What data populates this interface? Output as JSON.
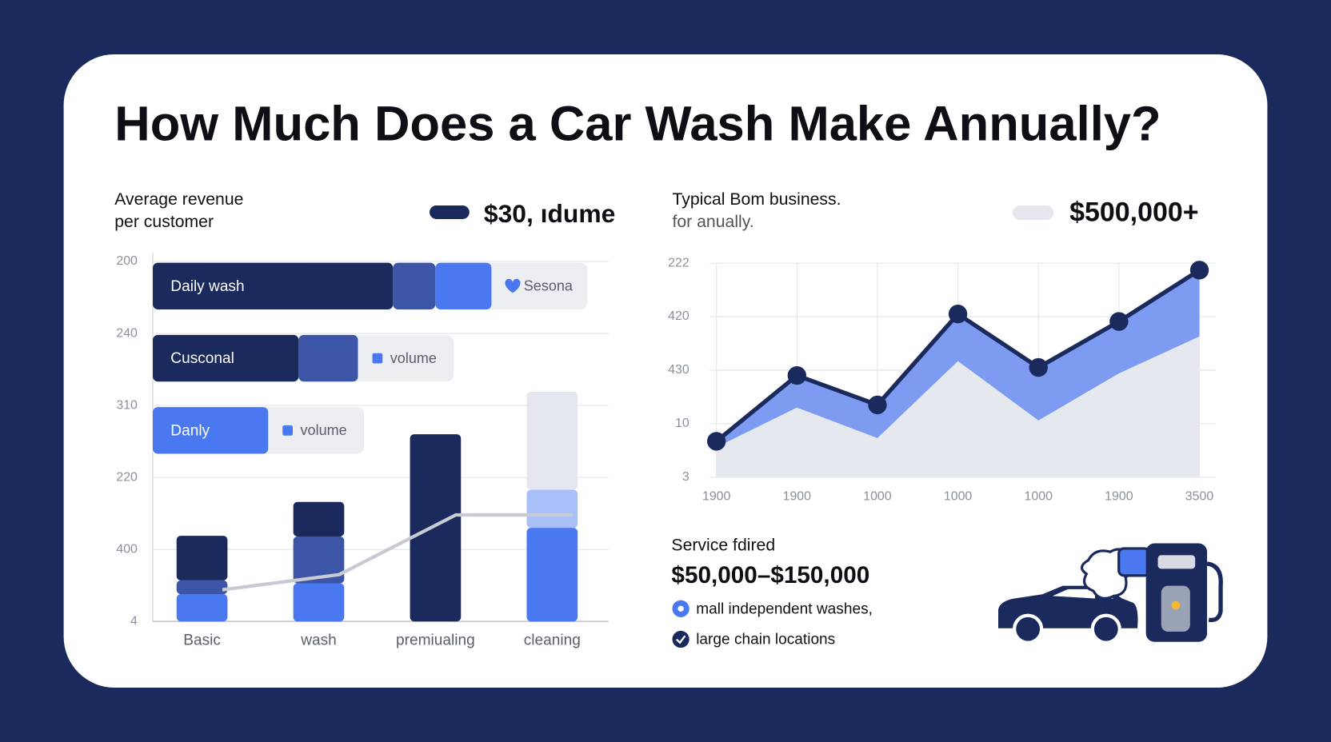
{
  "title": "How Much Does a Car Wash Make Annually?",
  "stats": [
    {
      "label": [
        "Average revenue",
        "per customer"
      ],
      "value": "$30, ıdume",
      "pill_color": "#1b2a5c"
    },
    {
      "label": [
        "Typical Bom business.",
        "for anually."
      ],
      "value": "$500,000+",
      "pill_color": "#e6e8ef"
    }
  ],
  "service": {
    "label": "Service fdired",
    "range": "$50,000–$150,000",
    "bullets": [
      "mall independent washes,",
      "large chain locations"
    ]
  },
  "chart_data": [
    {
      "type": "bar",
      "stacked": true,
      "categories": [
        "Basic",
        "wash",
        "premiualing",
        "cleaning"
      ],
      "series": [
        {
          "color": "#4a78f0",
          "values": [
            0.38,
            0.53,
            0,
            1.3
          ]
        },
        {
          "color": "#3d55a6",
          "colors": [
            "#3d55a6",
            "#3d55a6",
            "#3d55a6",
            "#a9bff7"
          ],
          "values": [
            0.19,
            0.65,
            0,
            0.53
          ]
        },
        {
          "color": "#1b2a5c",
          "colors": [
            "#1b2a5c",
            "#1b2a5c",
            "#1b2a5c",
            "#e4e7f0"
          ],
          "values": [
            0.62,
            0.48,
            2.6,
            1.36
          ]
        }
      ],
      "line": {
        "color": "#c8cbd4",
        "values": [
          0.44,
          0.65,
          1.48,
          1.48
        ]
      },
      "ylim": [
        0,
        5
      ],
      "yticks": [
        {
          "value": 0,
          "label": "4"
        },
        {
          "value": 1,
          "label": "400"
        },
        {
          "value": 2,
          "label": "220"
        },
        {
          "value": 3,
          "label": "310"
        },
        {
          "value": 4,
          "label": "240"
        },
        {
          "value": 5,
          "label": "200"
        }
      ],
      "grid": true,
      "hbars": {
        "xlim": [
          0,
          100
        ],
        "items": [
          {
            "label": "Daily wash",
            "tag": "Sesona",
            "values": [
              52.7,
              9.3,
              12.3
            ],
            "colors": [
              "#1b2a5c",
              "#3d55a6",
              "#4a78f0"
            ]
          },
          {
            "label": "Cusconal",
            "tag": "volume",
            "values": [
              32.0,
              13.0
            ],
            "colors": [
              "#1b2a5c",
              "#3d55a6"
            ]
          },
          {
            "label": "Danly",
            "tag": "volume",
            "values": [
              25.3
            ],
            "colors": [
              "#4a78f0"
            ]
          }
        ]
      }
    },
    {
      "type": "area",
      "categories": [
        "1900",
        "1900",
        "1000",
        "1000",
        "1000",
        "1900",
        "3500"
      ],
      "series": [
        {
          "color": "#1b2a5c",
          "fill": "#7d9bf0",
          "values": [
            0.67,
            1.9,
            1.35,
            3.05,
            2.05,
            2.91,
            3.87
          ]
        },
        {
          "color": "#e6e8ef",
          "fill": "#e6e8ef",
          "values": [
            0.56,
            1.3,
            0.73,
            2.17,
            1.06,
            1.94,
            2.63
          ]
        }
      ],
      "ylim": [
        0,
        4
      ],
      "yticks": [
        {
          "value": 0,
          "label": "3"
        },
        {
          "value": 1,
          "label": "10"
        },
        {
          "value": 2,
          "label": "430"
        },
        {
          "value": 3,
          "label": "420"
        },
        {
          "value": 4,
          "label": "222"
        }
      ],
      "grid": true
    }
  ]
}
